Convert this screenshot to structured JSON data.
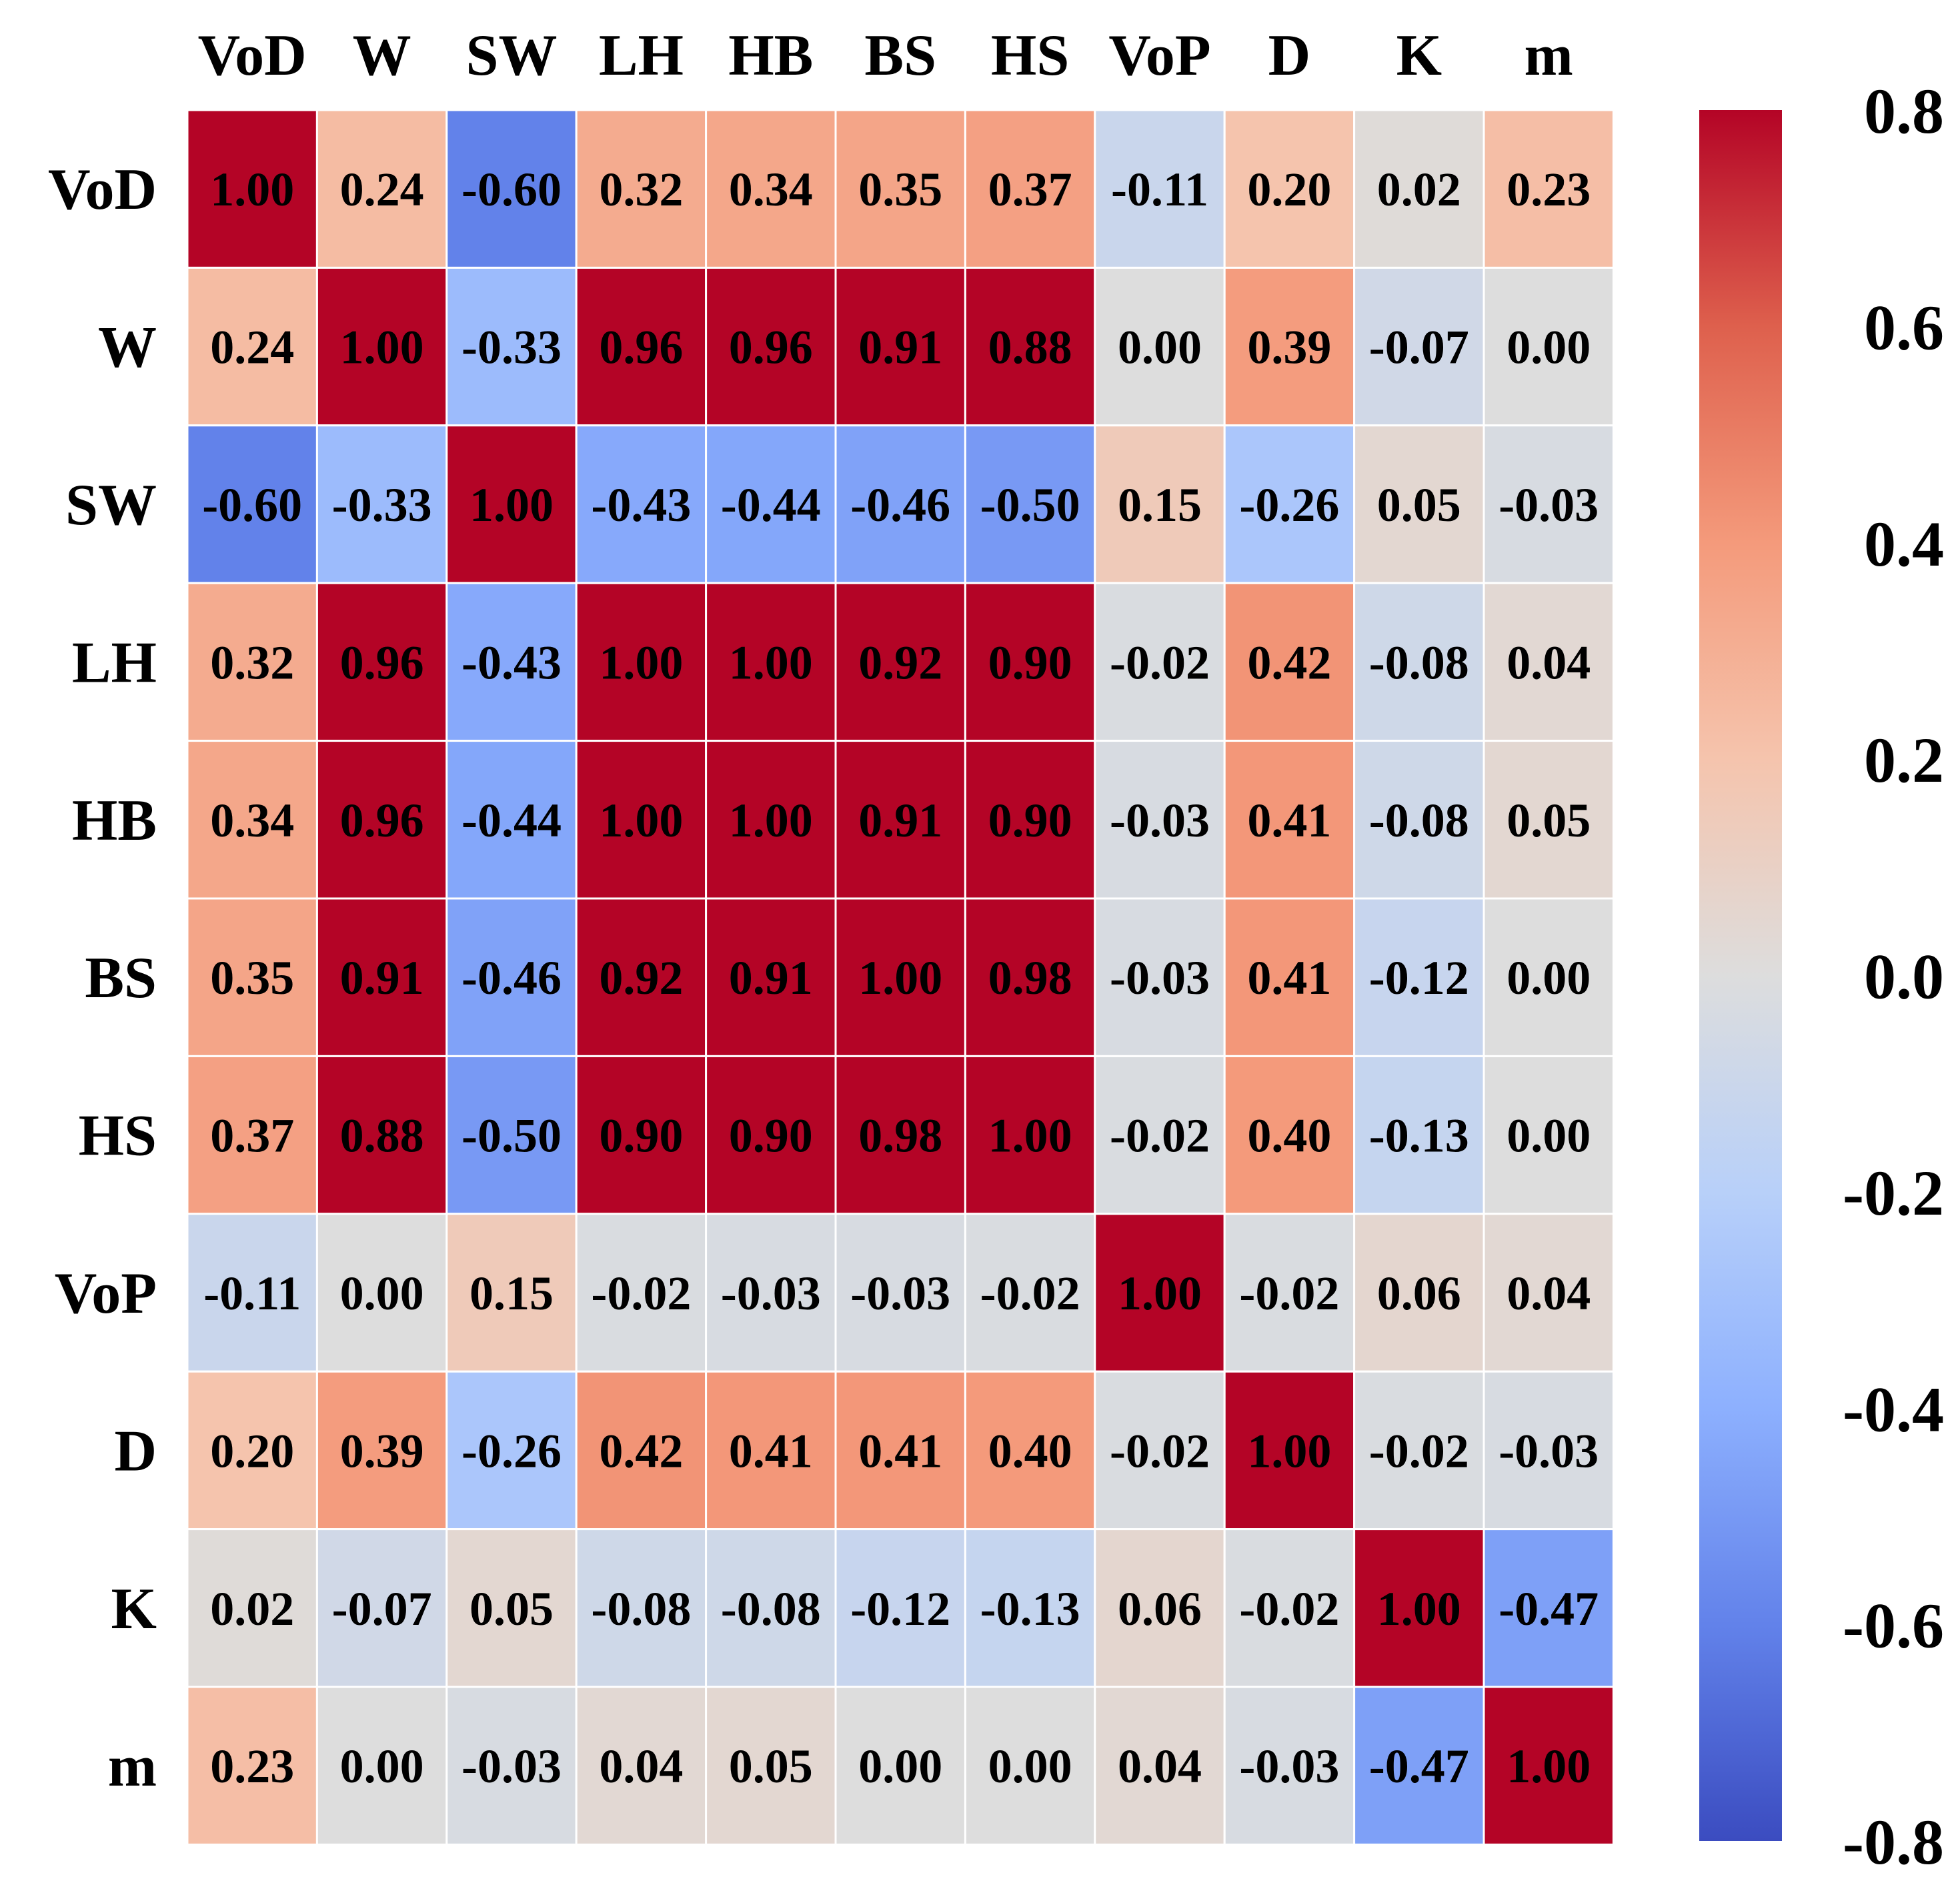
{
  "chart_data": {
    "type": "heatmap",
    "title": "",
    "labels": [
      "VoD",
      "W",
      "SW",
      "LH",
      "HB",
      "BS",
      "HS",
      "VoP",
      "D",
      "K",
      "m"
    ],
    "matrix": [
      [
        1.0,
        0.24,
        -0.6,
        0.32,
        0.34,
        0.35,
        0.37,
        -0.11,
        0.2,
        0.02,
        0.23
      ],
      [
        0.24,
        1.0,
        -0.33,
        0.96,
        0.96,
        0.91,
        0.88,
        0.0,
        0.39,
        -0.07,
        0.0
      ],
      [
        -0.6,
        -0.33,
        1.0,
        -0.43,
        -0.44,
        -0.46,
        -0.5,
        0.15,
        -0.26,
        0.05,
        -0.03
      ],
      [
        0.32,
        0.96,
        -0.43,
        1.0,
        1.0,
        0.92,
        0.9,
        -0.02,
        0.42,
        -0.08,
        0.04
      ],
      [
        0.34,
        0.96,
        -0.44,
        1.0,
        1.0,
        0.91,
        0.9,
        -0.03,
        0.41,
        -0.08,
        0.05
      ],
      [
        0.35,
        0.91,
        -0.46,
        0.92,
        0.91,
        1.0,
        0.98,
        -0.03,
        0.41,
        -0.12,
        0.0
      ],
      [
        0.37,
        0.88,
        -0.5,
        0.9,
        0.9,
        0.98,
        1.0,
        -0.02,
        0.4,
        -0.13,
        0.0
      ],
      [
        -0.11,
        0.0,
        0.15,
        -0.02,
        -0.03,
        -0.03,
        -0.02,
        1.0,
        -0.02,
        0.06,
        0.04
      ],
      [
        0.2,
        0.39,
        -0.26,
        0.42,
        0.41,
        0.41,
        0.4,
        -0.02,
        1.0,
        -0.02,
        -0.03
      ],
      [
        0.02,
        -0.07,
        0.05,
        -0.08,
        -0.08,
        -0.12,
        -0.13,
        0.06,
        -0.02,
        1.0,
        -0.47
      ],
      [
        0.23,
        0.0,
        -0.03,
        0.04,
        0.05,
        0.0,
        0.0,
        0.04,
        -0.03,
        -0.47,
        1.0
      ]
    ],
    "colormap": "coolwarm",
    "vmin": -0.8,
    "vmax": 0.8,
    "colorbar_ticks": [
      0.8,
      0.6,
      0.4,
      0.2,
      0.0,
      -0.2,
      -0.4,
      -0.6,
      -0.8
    ],
    "colorbar_tick_labels": [
      "0.8",
      "0.6",
      "0.4",
      "0.2",
      "0.0",
      "-0.2",
      "-0.4",
      "-0.6",
      "-0.8"
    ],
    "legend_position": "right",
    "annotation_format": "2 decimals"
  },
  "colors": {
    "cool_end": "#3b4cc0",
    "neutral": "#dddddd",
    "warm_end": "#b40426",
    "cell_border": "#ffffff",
    "text_light": "#ffffff",
    "text_dark": "#000000"
  }
}
